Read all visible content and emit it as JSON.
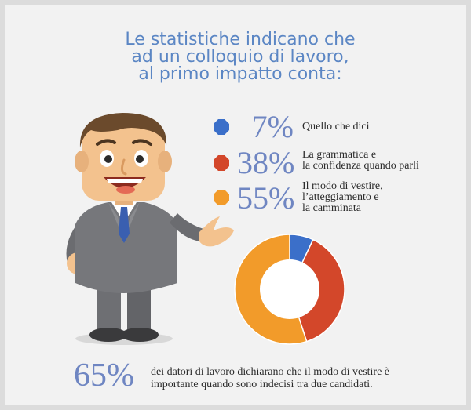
{
  "title": {
    "line1": "Le statistiche indicano che",
    "line2": "ad un colloquio di lavoro,",
    "line3": "al primo impatto conta:"
  },
  "stats": [
    {
      "percent": "7%",
      "value": 7,
      "color": "#3b6fc9",
      "description": [
        "Quello che dici"
      ]
    },
    {
      "percent": "38%",
      "value": 38,
      "color": "#d3472a",
      "description": [
        "La grammatica e",
        "la confidenza quando parli"
      ]
    },
    {
      "percent": "55%",
      "value": 55,
      "color": "#f29b2a",
      "description": [
        "Il modo di vestire,",
        "l’atteggiamento e",
        "la camminata"
      ]
    }
  ],
  "footer": {
    "percent": "65%",
    "line1": "dei datori di lavoro dichiarano che il modo di vestire è",
    "line2": "importante quando sono indecisi tra due candidati."
  },
  "illustration": {
    "icon": "businessman-illustration"
  },
  "chart_data": {
    "type": "pie",
    "categories": [
      "Quello che dici",
      "La grammatica e la confidenza quando parli",
      "Il modo di vestire, l’atteggiamento e la camminata"
    ],
    "values": [
      7,
      38,
      55
    ],
    "colors": [
      "#3b6fc9",
      "#d3472a",
      "#f29b2a"
    ],
    "style": "donut"
  }
}
